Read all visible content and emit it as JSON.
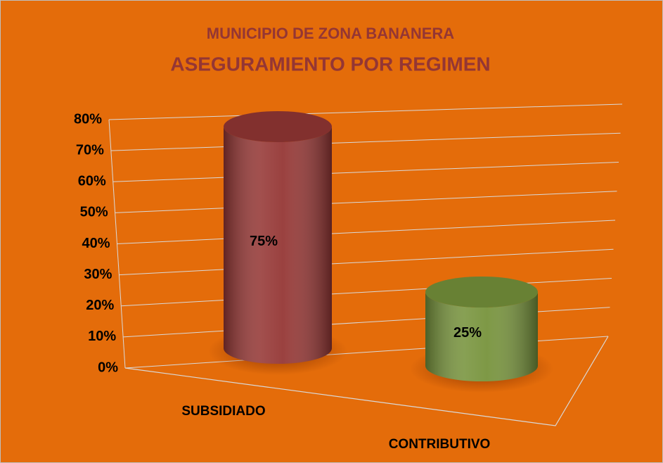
{
  "chart_data": {
    "type": "bar3d",
    "title": "MUNICIPIO DE ZONA BANANERA",
    "subtitle": "ASEGURAMIENTO POR REGIMEN",
    "categories": [
      "SUBSIDIADO",
      "CONTRIBUTIVO"
    ],
    "values": [
      75,
      25
    ],
    "value_labels": [
      "75%",
      "25%"
    ],
    "colors": [
      "#953735",
      "#77933c"
    ],
    "background": "#e46c0a",
    "ylim": [
      0,
      80
    ],
    "yticks": [
      {
        "value": 0,
        "label": "0%"
      },
      {
        "value": 10,
        "label": "10%"
      },
      {
        "value": 20,
        "label": "20%"
      },
      {
        "value": 30,
        "label": "30%"
      },
      {
        "value": 40,
        "label": "40%"
      },
      {
        "value": 50,
        "label": "50%"
      },
      {
        "value": 60,
        "label": "60%"
      },
      {
        "value": 70,
        "label": "70%"
      },
      {
        "value": 80,
        "label": "80%"
      }
    ],
    "grid": true
  }
}
